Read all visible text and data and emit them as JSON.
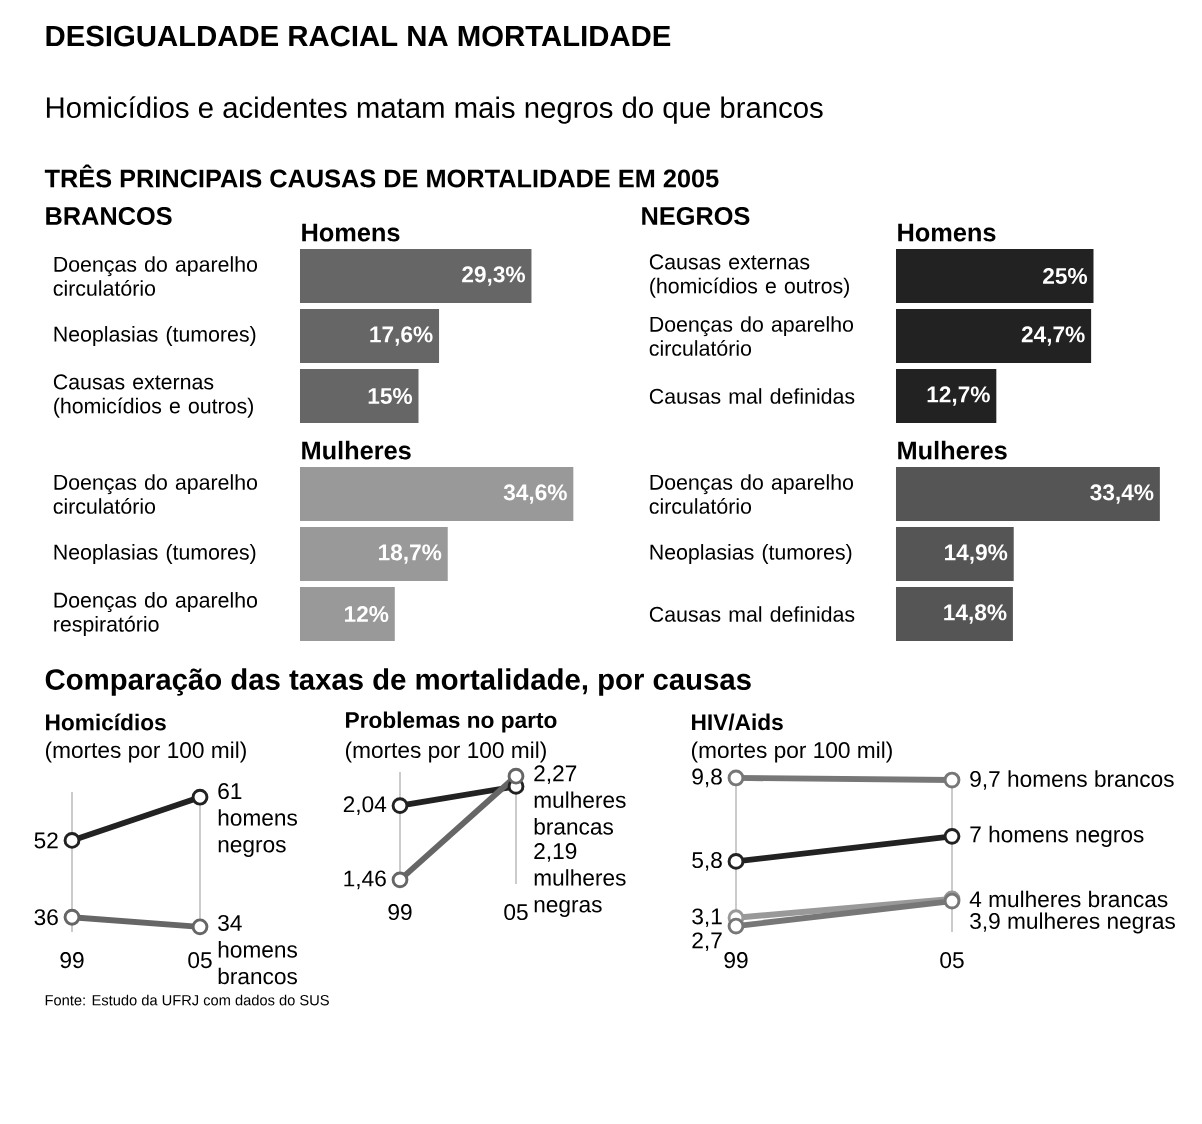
{
  "chart_data": [
    {
      "type": "bar",
      "orientation": "horizontal",
      "title": "Homens",
      "annotations": [
        "DESIGUALDADE RACIAL NA MORTALIDADE",
        "Homicídios e acidentes matam mais negros do que brancos",
        "TRÊS PRINCIPAIS CAUSAS DE MORTALIDADE EM 2005",
        "BRANCOS"
      ],
      "categories": [
        "Doenças do aparelho circulatório",
        "Neoplasias (tumores)",
        "Causas externas (homicídios e outros)"
      ],
      "values": [
        29.3,
        17.6,
        15
      ],
      "value_labels": [
        "29,3%",
        "17,6%",
        "15%"
      ],
      "color": "#666666",
      "tick_labels": "y"
    },
    {
      "type": "bar",
      "orientation": "horizontal",
      "title": "Mulheres",
      "categories": [
        "Doenças do aparelho circulatório",
        "Neoplasias (tumores)",
        "Doenças do aparelho respiratório"
      ],
      "values": [
        34.6,
        18.7,
        12
      ],
      "value_labels": [
        "34,6%",
        "18,7%",
        "12%"
      ],
      "color": "#999999",
      "tick_labels": "y"
    },
    {
      "type": "bar",
      "orientation": "horizontal",
      "title": "Homens",
      "annotations": [
        "NEGROS"
      ],
      "categories": [
        "Causas externas (homicídios e outros)",
        "Doenças do aparelho circulatório",
        "Causas mal definidas"
      ],
      "values": [
        25,
        24.7,
        12.7
      ],
      "value_labels": [
        "25%",
        "24,7%",
        "12,7%"
      ],
      "color": "#222222",
      "tick_labels": "y"
    },
    {
      "type": "bar",
      "orientation": "horizontal",
      "title": "Mulheres",
      "categories": [
        "Doenças do aparelho circulatório",
        "Neoplasias (tumores)",
        "Causas mal definidas"
      ],
      "values": [
        33.4,
        14.9,
        14.8
      ],
      "value_labels": [
        "33,4%",
        "14,9%",
        "14,8%"
      ],
      "color": "#555555",
      "tick_labels": "y"
    },
    {
      "type": "line",
      "title": "Homicídios",
      "ylabel": "(mortes por 100 mil)",
      "annotations": [
        "Comparação das taxas de mortalidade, por causas",
        "Fonte: Estudo da UFRJ com dados do SUS"
      ],
      "categories": [
        "99",
        "05"
      ],
      "series": [
        {
          "name": "homens negros",
          "color": "#222222",
          "values": [
            52,
            61
          ],
          "value_labels": [
            "52",
            "61"
          ]
        },
        {
          "name": "homens brancos",
          "color": "#666666",
          "values": [
            36,
            34
          ],
          "value_labels": [
            "36",
            "34"
          ]
        }
      ],
      "marker": "circle",
      "grid": "x",
      "tick_labels": "x"
    },
    {
      "type": "line",
      "title": "Problemas no parto",
      "ylabel": "(mortes por 100 mil)",
      "categories": [
        "99",
        "05"
      ],
      "series": [
        {
          "name": "mulheres negras",
          "color": "#222222",
          "values": [
            2.04,
            2.19
          ],
          "value_labels": [
            "2,04",
            "2,19"
          ]
        },
        {
          "name": "mulheres brancas",
          "color": "#666666",
          "values": [
            1.46,
            2.27
          ],
          "value_labels": [
            "1,46",
            "2,27"
          ]
        }
      ],
      "marker": "circle",
      "grid": "x",
      "tick_labels": "x"
    },
    {
      "type": "line",
      "title": "HIV/Aids",
      "ylabel": "(mortes por 100 mil)",
      "categories": [
        "99",
        "05"
      ],
      "series": [
        {
          "name": "homens brancos",
          "color": "#777777",
          "values": [
            9.8,
            9.7
          ],
          "value_labels": [
            "9,8",
            "9,7"
          ]
        },
        {
          "name": "homens negros",
          "color": "#222222",
          "values": [
            5.8,
            7
          ],
          "value_labels": [
            "5,8",
            "7"
          ]
        },
        {
          "name": "mulheres brancas",
          "color": "#999999",
          "values": [
            3.1,
            4
          ],
          "value_labels": [
            "3,1",
            "4"
          ]
        },
        {
          "name": "mulheres negras",
          "color": "#777777",
          "values": [
            2.7,
            3.9
          ],
          "value_labels": [
            "2,7",
            "3,9"
          ]
        }
      ],
      "marker": "circle",
      "grid": "x",
      "tick_labels": "x"
    }
  ]
}
